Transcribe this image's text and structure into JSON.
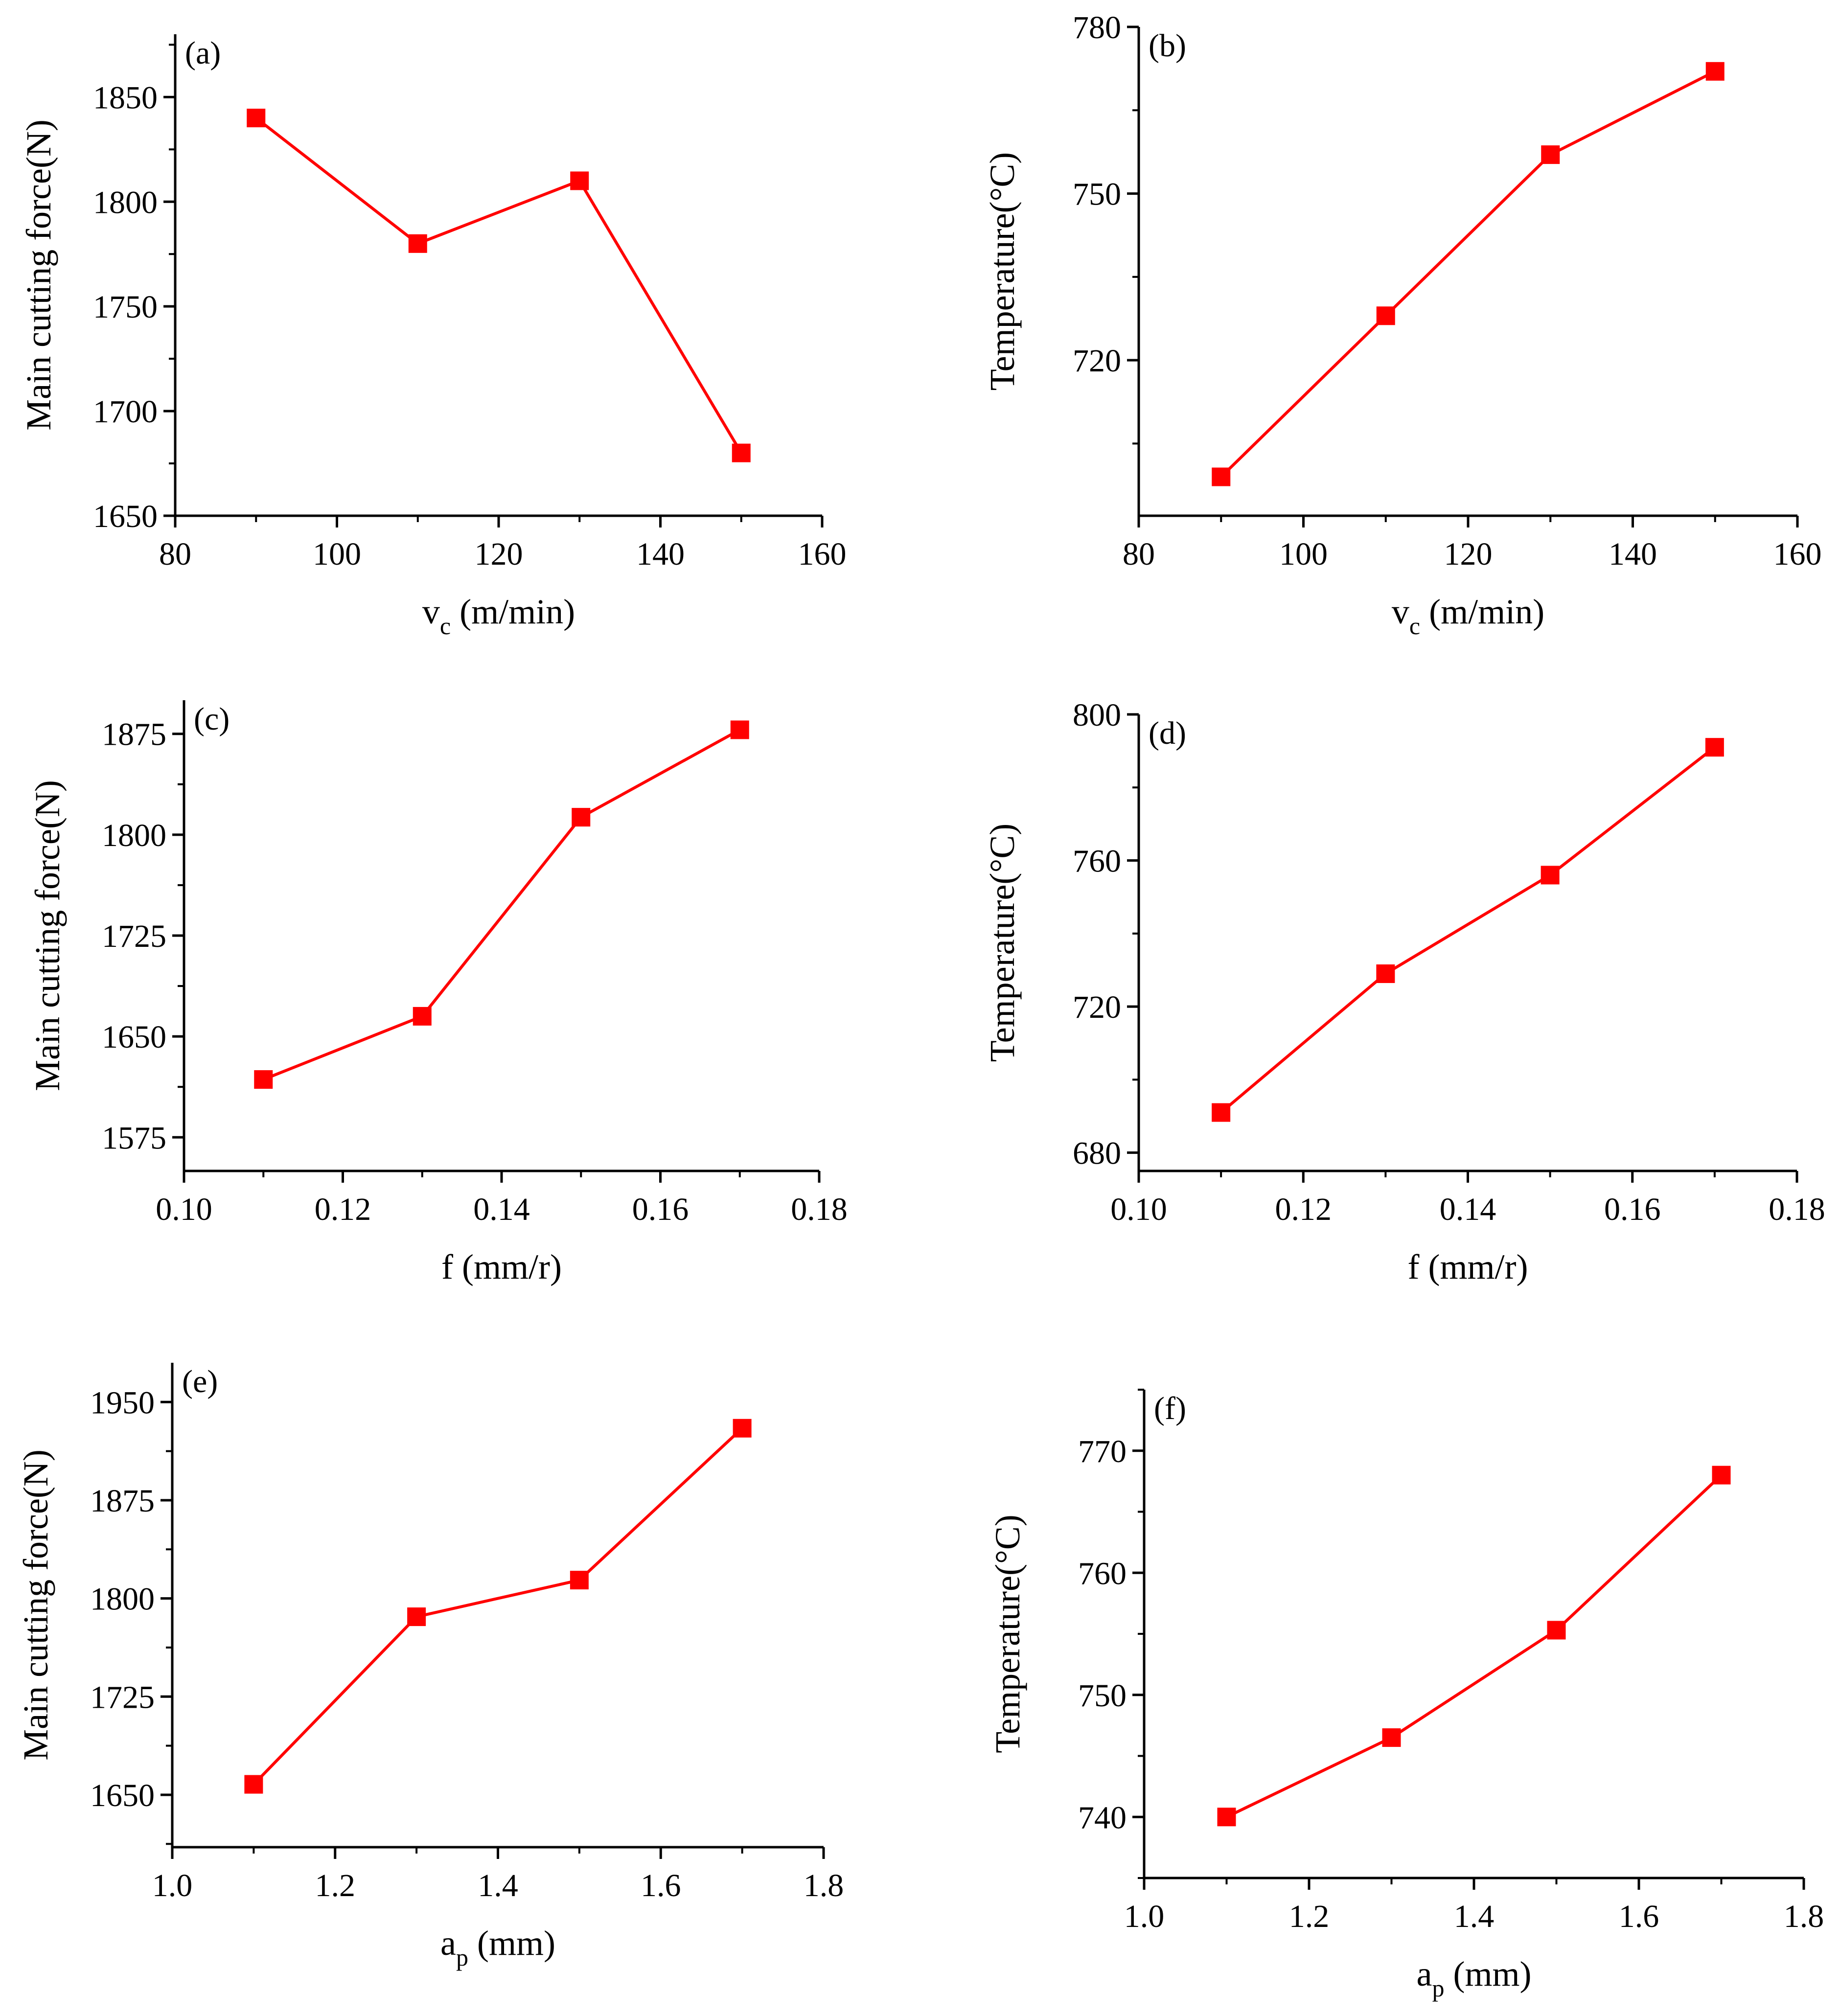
{
  "figure": {
    "colors": {
      "series": "#ff0000",
      "axis": "#000000",
      "background": "#ffffff"
    }
  },
  "chart_data": [
    {
      "panel": "(a)",
      "type": "line",
      "marker": "square",
      "x": [
        90,
        110,
        130,
        150
      ],
      "y": [
        1840,
        1780,
        1810,
        1680
      ],
      "xlim": [
        80,
        160
      ],
      "ylim": [
        1650,
        1880
      ],
      "xticks": [
        80,
        100,
        120,
        140,
        160
      ],
      "yticks": [
        1650,
        1700,
        1750,
        1800,
        1850
      ],
      "xtick_labels": [
        "80",
        "100",
        "120",
        "140",
        "160"
      ],
      "ytick_labels": [
        "1650",
        "1700",
        "1750",
        "1800",
        "1850"
      ],
      "xlabel": {
        "main": "v",
        "sub": "c",
        "rest": " (m/min)"
      },
      "ylabel": "Main cutting force(N)",
      "grid": false
    },
    {
      "panel": "(b)",
      "type": "line",
      "marker": "square",
      "x": [
        90,
        110,
        130,
        150
      ],
      "y": [
        699,
        728,
        757,
        772
      ],
      "xlim": [
        80,
        160
      ],
      "ylim": [
        692,
        780
      ],
      "xticks": [
        80,
        100,
        120,
        140,
        160
      ],
      "yticks": [
        720,
        750,
        780
      ],
      "xtick_labels": [
        "80",
        "100",
        "120",
        "140",
        "160"
      ],
      "ytick_labels": [
        "720",
        "750",
        "780"
      ],
      "xlabel": {
        "main": "v",
        "sub": "c",
        "rest": " (m/min)"
      },
      "ylabel": "Temperature(°C)",
      "grid": false
    },
    {
      "panel": "(c)",
      "type": "line",
      "marker": "square",
      "x": [
        0.11,
        0.13,
        0.15,
        0.17
      ],
      "y": [
        1618,
        1665,
        1813,
        1878
      ],
      "xlim": [
        0.1,
        0.18
      ],
      "ylim": [
        1550,
        1900
      ],
      "xticks": [
        0.1,
        0.12,
        0.14,
        0.16,
        0.18
      ],
      "yticks": [
        1575,
        1650,
        1725,
        1800,
        1875
      ],
      "xtick_labels": [
        "0.10",
        "0.12",
        "0.14",
        "0.16",
        "0.18"
      ],
      "ytick_labels": [
        "1575",
        "1650",
        "1725",
        "1800",
        "1875"
      ],
      "xlabel": {
        "main": "f (mm/r)",
        "sub": "",
        "rest": ""
      },
      "ylabel": "Main cutting force(N)",
      "grid": false
    },
    {
      "panel": "(d)",
      "type": "line",
      "marker": "square",
      "x": [
        0.11,
        0.13,
        0.15,
        0.17
      ],
      "y": [
        691,
        729,
        756,
        791
      ],
      "xlim": [
        0.1,
        0.18
      ],
      "ylim": [
        675,
        800
      ],
      "xticks": [
        0.1,
        0.12,
        0.14,
        0.16,
        0.18
      ],
      "yticks": [
        680,
        720,
        760,
        800
      ],
      "xtick_labels": [
        "0.10",
        "0.12",
        "0.14",
        "0.16",
        "0.18"
      ],
      "ytick_labels": [
        "680",
        "720",
        "760",
        "800"
      ],
      "xlabel": {
        "main": "f (mm/r)",
        "sub": "",
        "rest": ""
      },
      "ylabel": "Temperature(°C)",
      "grid": false
    },
    {
      "panel": "(e)",
      "type": "line",
      "marker": "square",
      "x": [
        1.1,
        1.3,
        1.5,
        1.7
      ],
      "y": [
        1658,
        1786,
        1814,
        1930
      ],
      "xlim": [
        1.0,
        1.8
      ],
      "ylim": [
        1610,
        1980
      ],
      "xticks": [
        1.0,
        1.2,
        1.4,
        1.6,
        1.8
      ],
      "yticks": [
        1650,
        1725,
        1800,
        1875,
        1950
      ],
      "xtick_labels": [
        "1.0",
        "1.2",
        "1.4",
        "1.6",
        "1.8"
      ],
      "ytick_labels": [
        "1650",
        "1725",
        "1800",
        "1875",
        "1950"
      ],
      "xlabel": {
        "main": "a",
        "sub": "p",
        "rest": " (mm)"
      },
      "ylabel": "Main cutting force(N)",
      "grid": false
    },
    {
      "panel": "(f)",
      "type": "line",
      "marker": "square",
      "x": [
        1.1,
        1.3,
        1.5,
        1.7
      ],
      "y": [
        740,
        746.5,
        755.3,
        768
      ],
      "xlim": [
        1.0,
        1.8
      ],
      "ylim": [
        735,
        775
      ],
      "xticks": [
        1.0,
        1.2,
        1.4,
        1.6,
        1.8
      ],
      "yticks": [
        740,
        750,
        760,
        770
      ],
      "xtick_labels": [
        "1.0",
        "1.2",
        "1.4",
        "1.6",
        "1.8"
      ],
      "ytick_labels": [
        "740",
        "750",
        "760",
        "770"
      ],
      "xlabel": {
        "main": "a",
        "sub": "p",
        "rest": " (mm)"
      },
      "ylabel": "Temperature(°C)",
      "grid": false
    }
  ]
}
